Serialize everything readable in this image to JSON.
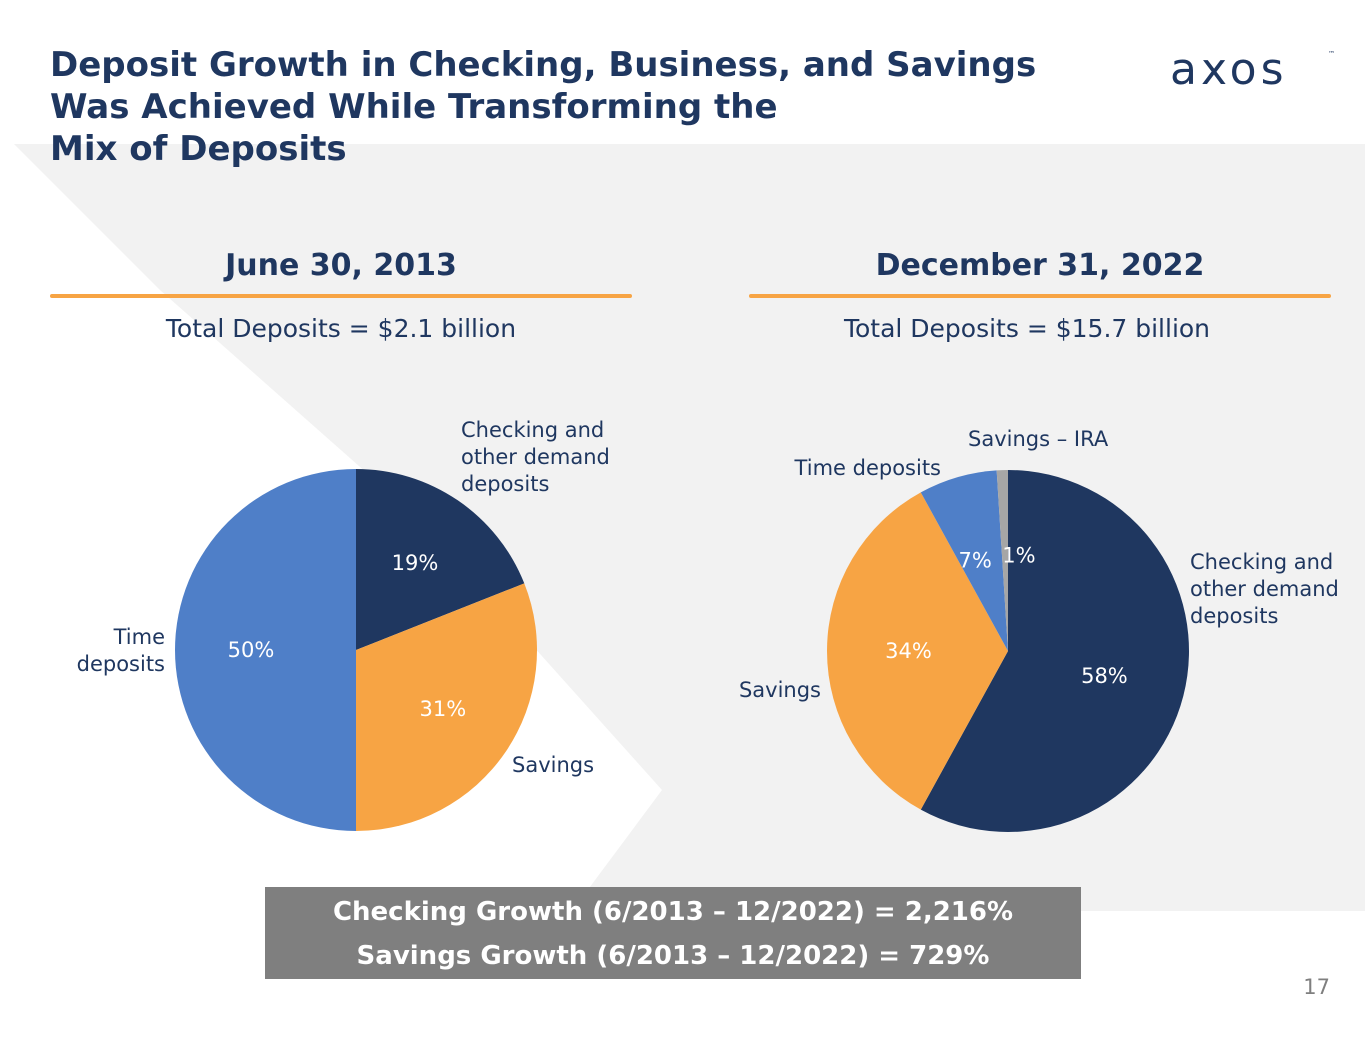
{
  "slide": {
    "title": "Deposit Growth in Checking, Business, and Savings\nWas Achieved While Transforming the\nMix of Deposits",
    "logo_text": "axos",
    "logo_tm": "™",
    "page_number": "17"
  },
  "colors": {
    "checking": "#1f3760",
    "savings": "#f7a444",
    "time": "#4f7fc8",
    "ira": "#a6a6a6",
    "accent": "#f7a444",
    "growth_box": "#7f7f7f"
  },
  "panels": [
    {
      "heading": "June 30, 2013",
      "total": "Total Deposits = $2.1 billion"
    },
    {
      "heading": "December 31, 2022",
      "total": "Total Deposits = $15.7 billion"
    }
  ],
  "chart_data": [
    {
      "type": "pie",
      "title": "June 30, 2013",
      "subtitle": "Total Deposits = $2.1 billion",
      "slices": [
        {
          "name": "Checking and other demand deposits",
          "value": 19,
          "label": "19%",
          "color": "#1f3760"
        },
        {
          "name": "Savings",
          "value": 31,
          "label": "31%",
          "color": "#f7a444"
        },
        {
          "name": "Time deposits",
          "value": 50,
          "label": "50%",
          "color": "#4f7fc8"
        }
      ]
    },
    {
      "type": "pie",
      "title": "December 31, 2022",
      "subtitle": "Total Deposits = $15.7 billion",
      "slices": [
        {
          "name": "Checking and other demand deposits",
          "value": 58,
          "label": "58%",
          "color": "#1f3760"
        },
        {
          "name": "Savings",
          "value": 34,
          "label": "34%",
          "color": "#f7a444"
        },
        {
          "name": "Time deposits",
          "value": 7,
          "label": "7%",
          "color": "#4f7fc8"
        },
        {
          "name": "Savings – IRA",
          "value": 1,
          "label": "1%",
          "color": "#a6a6a6"
        }
      ]
    }
  ],
  "growth": {
    "checking": "Checking Growth (6/2013 – 12/2022) = 2,216%",
    "savings": "Savings Growth (6/2013 – 12/2022) = 729%"
  }
}
